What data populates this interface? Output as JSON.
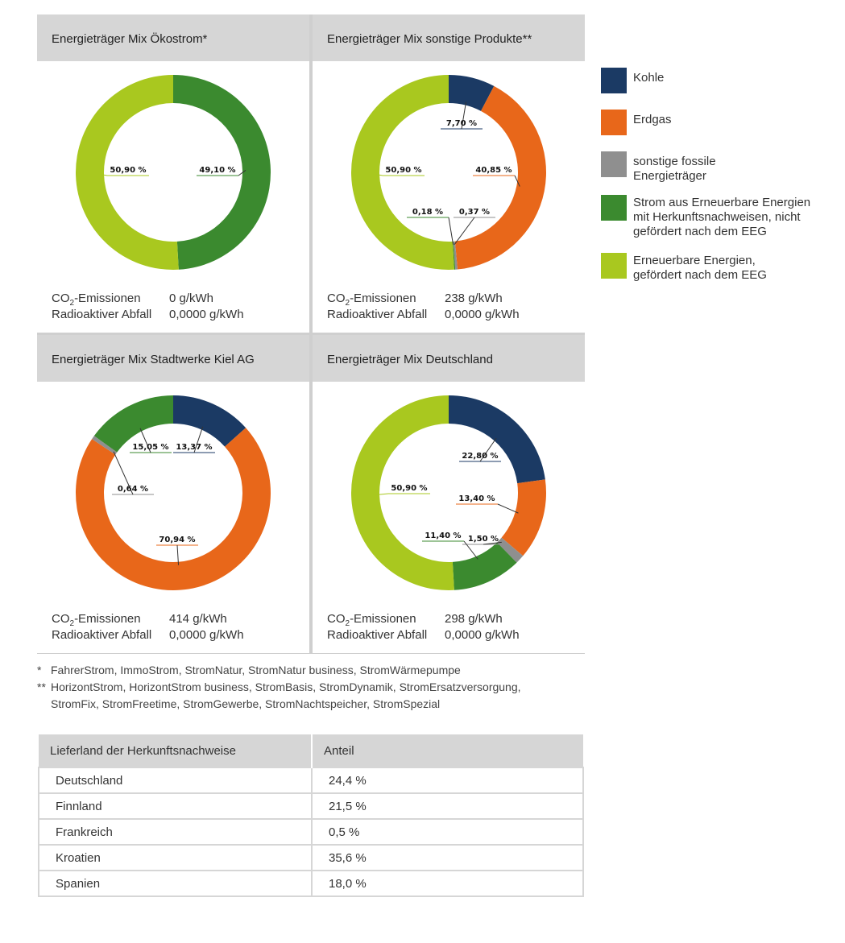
{
  "colors": {
    "kohle": "#1b3a64",
    "erdgas": "#e8671a",
    "fossil": "#8f8f8f",
    "strom_hkn": "#3b8a2f",
    "eeg": "#a9c81f"
  },
  "panels": [
    {
      "title": "Energieträger Mix Ökostrom*",
      "co2_label": "CO",
      "co2_sub": "2",
      "co2_suffix": "-Emissionen",
      "co2_value": "0 g/kWh",
      "waste_label": "Radioaktiver Abfall",
      "waste_value": "0,0000 g/kWh"
    },
    {
      "title": "Energieträger Mix sonstige Produkte**",
      "co2_label": "CO",
      "co2_sub": "2",
      "co2_suffix": "-Emissionen",
      "co2_value": "238 g/kWh",
      "waste_label": "Radioaktiver Abfall",
      "waste_value": "0,0000 g/kWh"
    },
    {
      "title": "Energieträger Mix Stadtwerke Kiel AG",
      "co2_label": "CO",
      "co2_sub": "2",
      "co2_suffix": "-Emissionen",
      "co2_value": "414 g/kWh",
      "waste_label": "Radioaktiver Abfall",
      "waste_value": "0,0000 g/kWh"
    },
    {
      "title": "Energieträger Mix Deutschland",
      "co2_label": "CO",
      "co2_sub": "2",
      "co2_suffix": "-Emissionen",
      "co2_value": "298 g/kWh",
      "waste_label": "Radioaktiver Abfall",
      "waste_value": "0,0000 g/kWh"
    }
  ],
  "chart_data": [
    {
      "type": "pie",
      "title": "Energieträger Mix Ökostrom*",
      "slices": [
        {
          "category": "Strom aus Erneuerbare Energien mit Herkunftsnachweisen, nicht gefördert nach dem EEG",
          "key": "strom_hkn",
          "value": 49.1,
          "label": "49,10 %"
        },
        {
          "category": "Erneuerbare Energien, gefördert nach dem EEG",
          "key": "eeg",
          "value": 50.9,
          "label": "50,90 %"
        }
      ]
    },
    {
      "type": "pie",
      "title": "Energieträger Mix sonstige Produkte**",
      "slices": [
        {
          "category": "Kohle",
          "key": "kohle",
          "value": 7.7,
          "label": "7,70 %"
        },
        {
          "category": "Erdgas",
          "key": "erdgas",
          "value": 40.85,
          "label": "40,85 %"
        },
        {
          "category": "sonstige fossile Energieträger",
          "key": "fossil",
          "value": 0.37,
          "label": "0,37 %"
        },
        {
          "category": "Strom aus Erneuerbare Energien mit Herkunftsnachweisen, nicht gefördert nach dem EEG",
          "key": "strom_hkn",
          "value": 0.18,
          "label": "0,18 %"
        },
        {
          "category": "Erneuerbare Energien, gefördert nach dem EEG",
          "key": "eeg",
          "value": 50.9,
          "label": "50,90 %"
        }
      ]
    },
    {
      "type": "pie",
      "title": "Energieträger Mix Stadtwerke Kiel AG",
      "slices": [
        {
          "category": "Kohle",
          "key": "kohle",
          "value": 13.37,
          "label": "13,37 %"
        },
        {
          "category": "Erdgas",
          "key": "erdgas",
          "value": 70.94,
          "label": "70,94 %"
        },
        {
          "category": "sonstige fossile Energieträger",
          "key": "fossil",
          "value": 0.64,
          "label": "0,64 %"
        },
        {
          "category": "Strom aus Erneuerbare Energien mit Herkunftsnachweisen, nicht gefördert nach dem EEG",
          "key": "strom_hkn",
          "value": 15.05,
          "label": "15,05 %"
        }
      ]
    },
    {
      "type": "pie",
      "title": "Energieträger Mix Deutschland",
      "slices": [
        {
          "category": "Kohle",
          "key": "kohle",
          "value": 22.8,
          "label": "22,80 %"
        },
        {
          "category": "Erdgas",
          "key": "erdgas",
          "value": 13.4,
          "label": "13,40 %"
        },
        {
          "category": "sonstige fossile Energieträger",
          "key": "fossil",
          "value": 1.5,
          "label": "1,50 %"
        },
        {
          "category": "Strom aus Erneuerbare Energien mit Herkunftsnachweisen, nicht gefördert nach dem EEG",
          "key": "strom_hkn",
          "value": 11.4,
          "label": "11,40 %"
        },
        {
          "category": "Erneuerbare Energien, gefördert nach dem EEG",
          "key": "eeg",
          "value": 50.9,
          "label": "50,90 %"
        }
      ]
    }
  ],
  "legend": [
    {
      "key": "kohle",
      "label": "Kohle"
    },
    {
      "key": "erdgas",
      "label": "Erdgas"
    },
    {
      "key": "fossil",
      "label": "sonstige fossile Energieträger"
    },
    {
      "key": "strom_hkn",
      "label": "Strom aus Erneuerbare Energien mit Herkunftsnachweisen, nicht gefördert nach dem EEG"
    },
    {
      "key": "eeg",
      "label": "Erneuerbare Energien, gefördert nach dem EEG"
    }
  ],
  "notes": {
    "n1_mark": "*",
    "n1_text": "FahrerStrom, ImmoStrom, StromNatur, StromNatur business, StromWärmepumpe",
    "n2_mark": "**",
    "n2_text": "HorizontStrom, HorizontStrom business, StromBasis, StromDynamik, StromErsatzversorgung,",
    "n2_text2": "StromFix, StromFreetime, StromGewerbe, StromNachtspeicher, StromSpezial"
  },
  "origin_table": {
    "headers": [
      "Lieferland der Herkunftsnachweise",
      "Anteil"
    ],
    "rows": [
      [
        "Deutschland",
        "24,4 %"
      ],
      [
        "Finnland",
        "21,5 %"
      ],
      [
        "Frankreich",
        "0,5 %"
      ],
      [
        "Kroatien",
        "35,6 %"
      ],
      [
        "Spanien",
        "18,0 %"
      ]
    ]
  }
}
